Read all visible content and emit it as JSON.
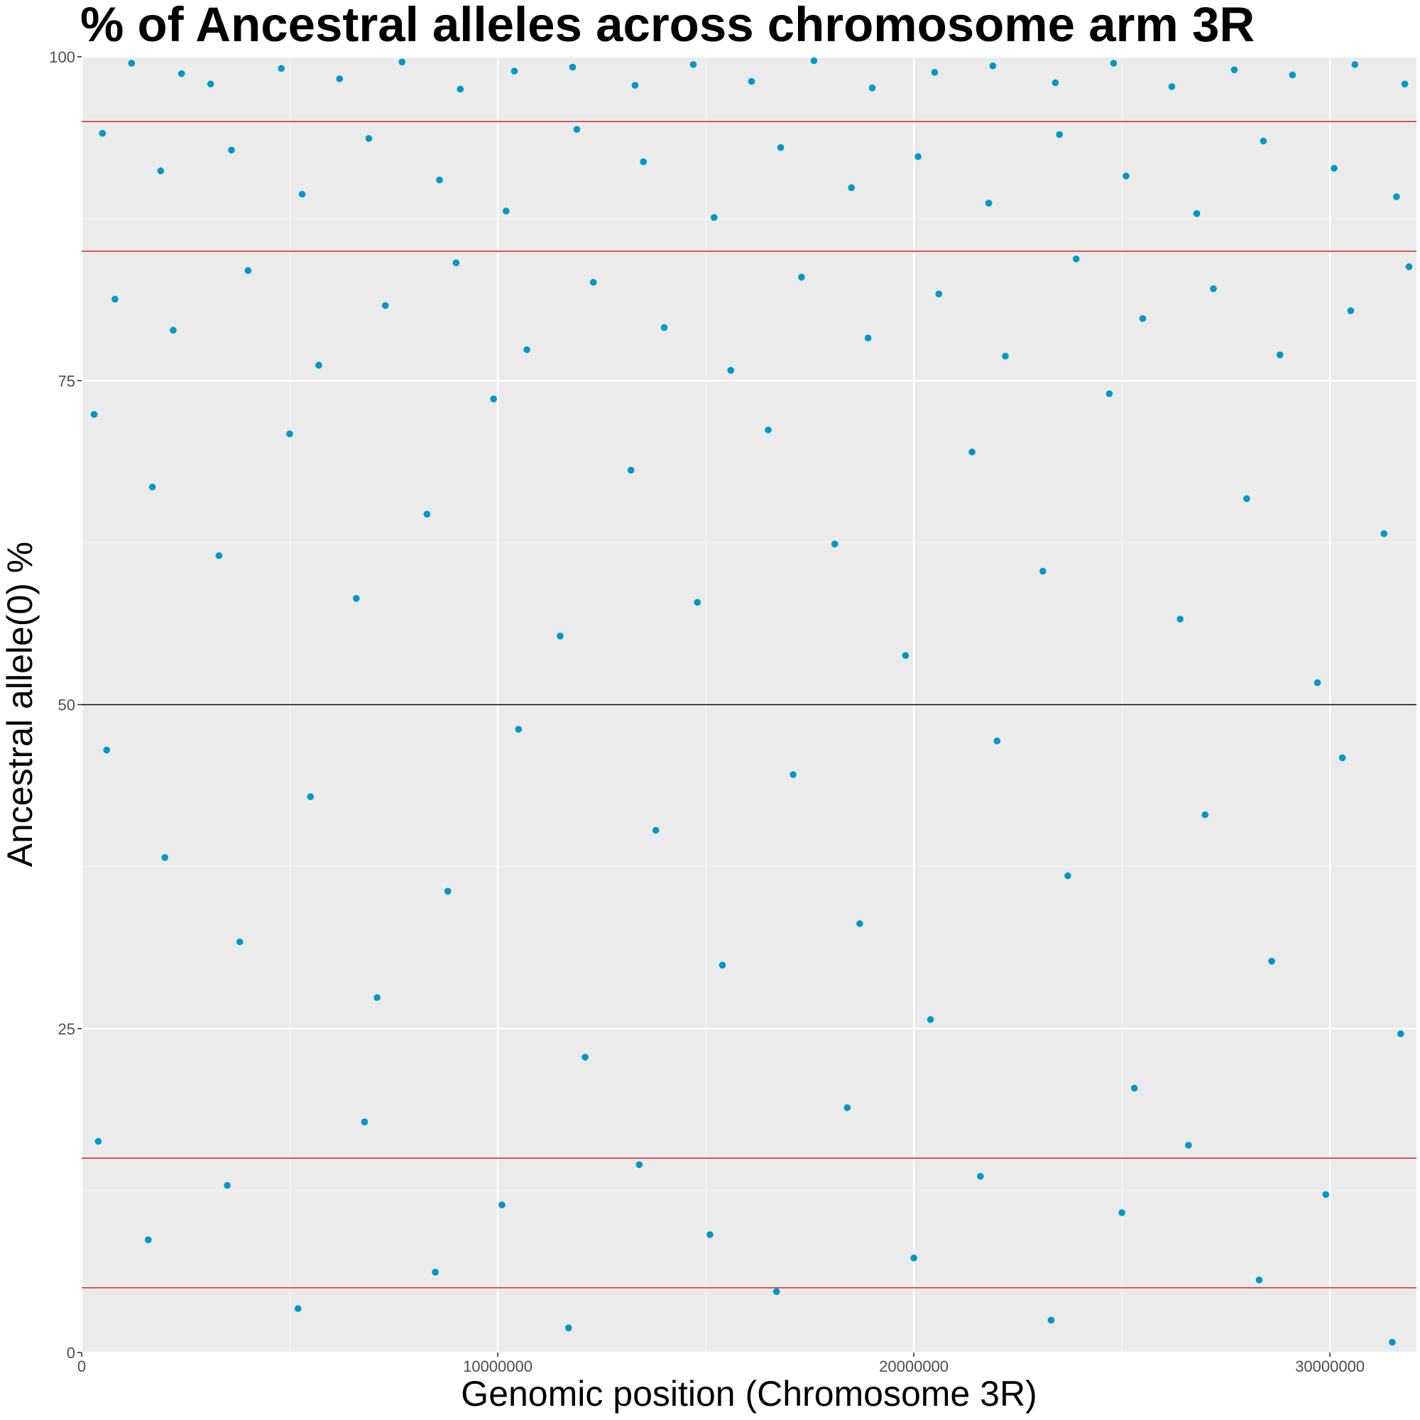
{
  "chart_data": {
    "type": "scatter",
    "title": "% of Ancestral alleles across chromosome arm 3R",
    "xlabel": "Genomic position (Chromosome 3R)",
    "ylabel": "Ancestral allele(0) %",
    "xlim": [
      0,
      32079331
    ],
    "ylim": [
      0,
      100
    ],
    "x_ticks": [
      0,
      10000000,
      20000000,
      30000000
    ],
    "x_tick_labels": [
      "0",
      "10000000",
      "20000000",
      "30000000"
    ],
    "y_ticks": [
      0,
      25,
      50,
      75,
      100
    ],
    "y_tick_labels": [
      "0",
      "25",
      "50",
      "75",
      "100"
    ],
    "grid": true,
    "legend": "none",
    "point_color": "#0097c8",
    "panel_background": "#ebebeb",
    "reference_lines": [
      {
        "y": 95,
        "color": "#d62728"
      },
      {
        "y": 85,
        "color": "#d62728"
      },
      {
        "y": 50,
        "color": "#000000"
      },
      {
        "y": 15,
        "color": "#d62728"
      },
      {
        "y": 5,
        "color": "#d62728"
      }
    ],
    "series": [
      {
        "values_note_density": "approximate density of points per y band",
        "density_by_y_band": [
          {
            "y_range": [
              97,
              100
            ],
            "relative_density": "very high (solid band)"
          },
          {
            "y_range": [
              95,
              97
            ],
            "relative_density": "high"
          },
          {
            "y_range": [
              85,
              95
            ],
            "relative_density": "medium-high"
          },
          {
            "y_range": [
              75,
              85
            ],
            "relative_density": "medium"
          },
          {
            "y_range": [
              50,
              75
            ],
            "relative_density": "medium-low"
          },
          {
            "y_range": [
              0,
              50
            ],
            "relative_density": "low"
          }
        ],
        "points": [
          [
            1200000,
            99.5
          ],
          [
            2400000,
            98.7
          ],
          [
            3100000,
            97.9
          ],
          [
            4800000,
            99.1
          ],
          [
            6200000,
            98.3
          ],
          [
            7700000,
            99.6
          ],
          [
            9100000,
            97.5
          ],
          [
            10400000,
            98.9
          ],
          [
            11800000,
            99.2
          ],
          [
            13300000,
            97.8
          ],
          [
            14700000,
            99.4
          ],
          [
            16100000,
            98.1
          ],
          [
            17600000,
            99.7
          ],
          [
            19000000,
            97.6
          ],
          [
            20500000,
            98.8
          ],
          [
            21900000,
            99.3
          ],
          [
            23400000,
            98.0
          ],
          [
            24800000,
            99.5
          ],
          [
            26200000,
            97.7
          ],
          [
            27700000,
            99.0
          ],
          [
            29100000,
            98.6
          ],
          [
            30600000,
            99.4
          ],
          [
            31800000,
            97.9
          ],
          [
            500000,
            94.1
          ],
          [
            1900000,
            91.2
          ],
          [
            3600000,
            92.8
          ],
          [
            5300000,
            89.4
          ],
          [
            6900000,
            93.7
          ],
          [
            8600000,
            90.5
          ],
          [
            10200000,
            88.1
          ],
          [
            11900000,
            94.4
          ],
          [
            13500000,
            91.9
          ],
          [
            15200000,
            87.6
          ],
          [
            16800000,
            93.0
          ],
          [
            18500000,
            89.9
          ],
          [
            20100000,
            92.3
          ],
          [
            21800000,
            88.7
          ],
          [
            23500000,
            94.0
          ],
          [
            25100000,
            90.8
          ],
          [
            26800000,
            87.9
          ],
          [
            28400000,
            93.5
          ],
          [
            30100000,
            91.4
          ],
          [
            31600000,
            89.2
          ],
          [
            800000,
            81.3
          ],
          [
            2200000,
            78.9
          ],
          [
            4000000,
            83.5
          ],
          [
            5700000,
            76.2
          ],
          [
            7300000,
            80.8
          ],
          [
            9000000,
            84.1
          ],
          [
            10700000,
            77.4
          ],
          [
            12300000,
            82.6
          ],
          [
            14000000,
            79.1
          ],
          [
            15600000,
            75.8
          ],
          [
            17300000,
            83.0
          ],
          [
            18900000,
            78.3
          ],
          [
            20600000,
            81.7
          ],
          [
            22200000,
            76.9
          ],
          [
            23900000,
            84.4
          ],
          [
            25500000,
            79.8
          ],
          [
            27200000,
            82.1
          ],
          [
            28800000,
            77.0
          ],
          [
            30500000,
            80.4
          ],
          [
            31900000,
            83.8
          ],
          [
            300000,
            72.4
          ],
          [
            1700000,
            66.8
          ],
          [
            3300000,
            61.5
          ],
          [
            5000000,
            70.9
          ],
          [
            6600000,
            58.2
          ],
          [
            8300000,
            64.7
          ],
          [
            9900000,
            73.6
          ],
          [
            11500000,
            55.3
          ],
          [
            13200000,
            68.1
          ],
          [
            14800000,
            57.9
          ],
          [
            16500000,
            71.2
          ],
          [
            18100000,
            62.4
          ],
          [
            19800000,
            53.8
          ],
          [
            21400000,
            69.5
          ],
          [
            23100000,
            60.3
          ],
          [
            24700000,
            74.0
          ],
          [
            26400000,
            56.6
          ],
          [
            28000000,
            65.9
          ],
          [
            29700000,
            51.7
          ],
          [
            31300000,
            63.2
          ],
          [
            600000,
            46.5
          ],
          [
            2000000,
            38.2
          ],
          [
            3800000,
            31.7
          ],
          [
            5500000,
            42.9
          ],
          [
            7100000,
            27.4
          ],
          [
            8800000,
            35.6
          ],
          [
            10500000,
            48.1
          ],
          [
            12100000,
            22.8
          ],
          [
            13800000,
            40.3
          ],
          [
            15400000,
            29.9
          ],
          [
            17100000,
            44.6
          ],
          [
            18700000,
            33.1
          ],
          [
            20400000,
            25.7
          ],
          [
            22000000,
            47.2
          ],
          [
            23700000,
            36.8
          ],
          [
            25300000,
            20.4
          ],
          [
            27000000,
            41.5
          ],
          [
            28600000,
            30.2
          ],
          [
            30300000,
            45.9
          ],
          [
            31700000,
            24.6
          ],
          [
            400000,
            16.3
          ],
          [
            1600000,
            8.7
          ],
          [
            3500000,
            12.9
          ],
          [
            5200000,
            3.4
          ],
          [
            6800000,
            17.8
          ],
          [
            8500000,
            6.2
          ],
          [
            10100000,
            11.4
          ],
          [
            11700000,
            1.9
          ],
          [
            13400000,
            14.5
          ],
          [
            15100000,
            9.1
          ],
          [
            16700000,
            4.7
          ],
          [
            18400000,
            18.9
          ],
          [
            20000000,
            7.3
          ],
          [
            21600000,
            13.6
          ],
          [
            23300000,
            2.5
          ],
          [
            25000000,
            10.8
          ],
          [
            26600000,
            16.0
          ],
          [
            28300000,
            5.6
          ],
          [
            29900000,
            12.2
          ],
          [
            31500000,
            0.8
          ]
        ]
      }
    ]
  }
}
